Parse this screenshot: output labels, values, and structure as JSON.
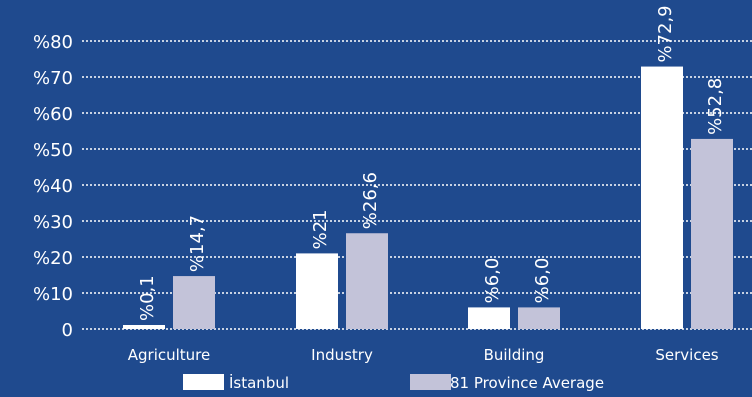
{
  "chart_data": {
    "type": "bar",
    "categories": [
      "Agriculture",
      "Industry",
      "Building",
      "Services"
    ],
    "series": [
      {
        "name": "İstanbul",
        "values": [
          0.1,
          21,
          6.0,
          72.9
        ],
        "value_labels": [
          "%0,1",
          "%21",
          "%6,0",
          "%72,9"
        ]
      },
      {
        "name": "81 Province Average",
        "values": [
          14.7,
          26.6,
          6.0,
          52.8
        ],
        "value_labels": [
          "%14,7",
          "%26,6",
          "%6,0",
          "%52,8"
        ]
      }
    ],
    "yticks": [
      {
        "value": 0,
        "label": "0"
      },
      {
        "value": 10,
        "label": "%10"
      },
      {
        "value": 20,
        "label": "%20"
      },
      {
        "value": 30,
        "label": "%30"
      },
      {
        "value": 40,
        "label": "%40"
      },
      {
        "value": 50,
        "label": "%50"
      },
      {
        "value": 60,
        "label": "%60"
      },
      {
        "value": 70,
        "label": "%70"
      },
      {
        "value": 80,
        "label": "%80"
      }
    ],
    "ylim": [
      0,
      80
    ],
    "grid": true,
    "gridline_style": "dotted",
    "legend_position": "bottom",
    "colors": {
      "background": "#1f4a8e",
      "istanbul": "#ffffff",
      "province_average": "#c3c3d9",
      "text": "#ffffff",
      "grid": "#ffffff"
    }
  }
}
